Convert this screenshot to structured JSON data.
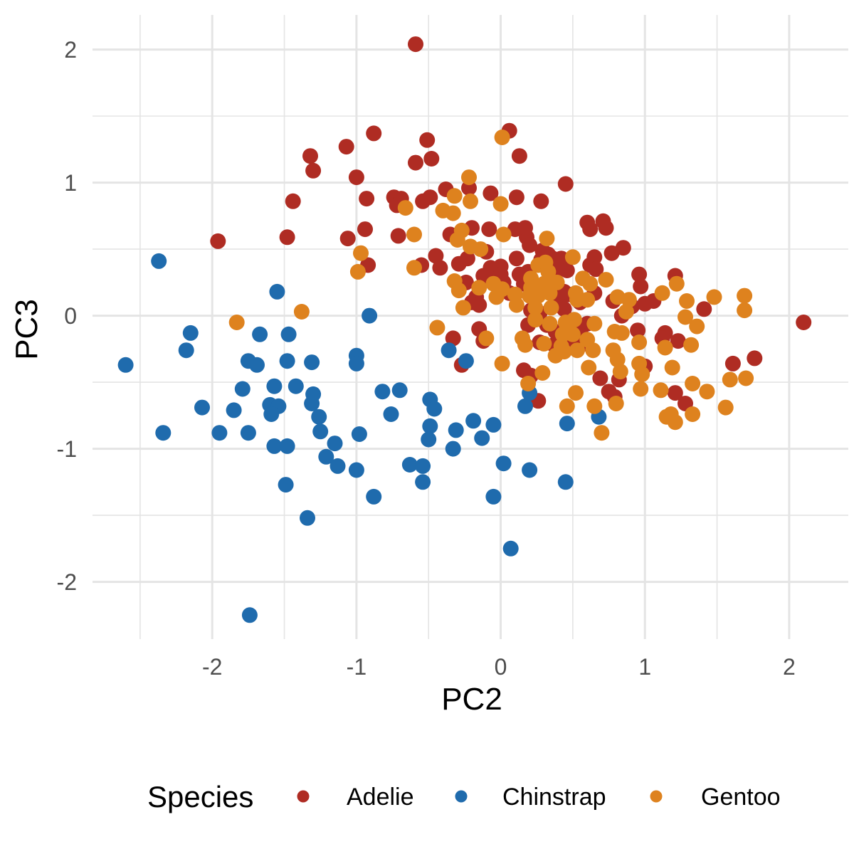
{
  "figure": {
    "background": "#FFFFFF"
  },
  "chart_data": {
    "type": "scatter",
    "title": "",
    "xlabel": "PC2",
    "ylabel": "PC3",
    "x_ticks": [
      -2,
      -1,
      0,
      1,
      2
    ],
    "y_ticks": [
      2,
      1,
      0,
      -1,
      -2
    ],
    "xlim": [
      -2.83,
      2.41
    ],
    "ylim": [
      -2.43,
      2.26
    ],
    "grid": {
      "show": true,
      "minor_step": 0.5,
      "color": "#E4E4E4"
    },
    "tick_label_color": "#4D4D4D",
    "point_radius_px": 11,
    "legend": {
      "title": "Species",
      "position": "bottom"
    },
    "series": [
      {
        "name": "Adelie",
        "color": "#AF2C23",
        "points": [
          [
            -1.32,
            1.2
          ],
          [
            -1.3,
            1.09
          ],
          [
            -1.44,
            0.86
          ],
          [
            -0.59,
            2.04
          ],
          [
            -0.88,
            1.37
          ],
          [
            -1.07,
            1.27
          ],
          [
            -0.51,
            1.32
          ],
          [
            -0.59,
            1.15
          ],
          [
            -0.48,
            1.18
          ],
          [
            0.06,
            1.39
          ],
          [
            0.13,
            1.2
          ],
          [
            -1.0,
            1.04
          ],
          [
            0.45,
            0.99
          ],
          [
            -0.22,
            0.96
          ],
          [
            -0.93,
            0.88
          ],
          [
            -0.74,
            0.89
          ],
          [
            -0.69,
            0.88
          ],
          [
            -0.72,
            0.83
          ],
          [
            -0.54,
            0.86
          ],
          [
            -0.49,
            0.89
          ],
          [
            -0.38,
            0.95
          ],
          [
            -0.07,
            0.92
          ],
          [
            0.11,
            0.89
          ],
          [
            0.28,
            0.86
          ],
          [
            0.6,
            0.7
          ],
          [
            0.71,
            0.71
          ],
          [
            -1.96,
            0.56
          ],
          [
            -1.48,
            0.59
          ],
          [
            -1.06,
            0.58
          ],
          [
            -0.94,
            0.65
          ],
          [
            -0.71,
            0.6
          ],
          [
            -0.35,
            0.61
          ],
          [
            -0.2,
            0.66
          ],
          [
            -0.08,
            0.65
          ],
          [
            0.1,
            0.65
          ],
          [
            0.18,
            0.59
          ],
          [
            0.2,
            0.53
          ],
          [
            -0.92,
            0.38
          ],
          [
            -0.45,
            0.45
          ],
          [
            -0.55,
            0.38
          ],
          [
            -0.42,
            0.36
          ],
          [
            -0.29,
            0.39
          ],
          [
            -0.23,
            0.43
          ],
          [
            -0.1,
            0.48
          ],
          [
            -0.12,
            0.3
          ],
          [
            -0.07,
            0.36
          ],
          [
            0.0,
            0.37
          ],
          [
            -0.24,
            0.25
          ],
          [
            -0.17,
            0.14
          ],
          [
            0.02,
            0.25
          ],
          [
            0.11,
            0.43
          ],
          [
            0.13,
            0.31
          ],
          [
            0.17,
            0.29
          ],
          [
            0.19,
            0.33
          ],
          [
            0.29,
            0.49
          ],
          [
            0.33,
            0.46
          ],
          [
            0.36,
            0.43
          ],
          [
            0.37,
            0.37
          ],
          [
            0.42,
            0.43
          ],
          [
            0.46,
            0.34
          ],
          [
            0.35,
            0.23
          ],
          [
            0.41,
            0.14
          ],
          [
            0.47,
            0.16
          ],
          [
            0.21,
            0.04
          ],
          [
            0.32,
            -0.07
          ],
          [
            0.38,
            -0.12
          ],
          [
            0.5,
            -0.1
          ],
          [
            0.54,
            -0.1
          ],
          [
            0.55,
            0.1
          ],
          [
            -0.33,
            -0.17
          ],
          [
            -0.27,
            -0.37
          ],
          [
            -0.15,
            -0.1
          ],
          [
            -0.12,
            -0.19
          ],
          [
            0.16,
            -0.41
          ],
          [
            0.21,
            -0.45
          ],
          [
            0.26,
            -0.64
          ],
          [
            0.62,
            0.65
          ],
          [
            0.73,
            0.66
          ],
          [
            0.85,
            0.51
          ],
          [
            0.77,
            0.47
          ],
          [
            0.65,
            0.44
          ],
          [
            0.62,
            0.38
          ],
          [
            0.66,
            0.35
          ],
          [
            0.96,
            0.31
          ],
          [
            0.97,
            0.22
          ],
          [
            0.78,
            0.11
          ],
          [
            0.91,
            0.07
          ],
          [
            0.84,
            0.0
          ],
          [
            1.0,
            0.09
          ],
          [
            1.06,
            0.11
          ],
          [
            1.21,
            0.3
          ],
          [
            1.41,
            0.05
          ],
          [
            2.1,
            -0.05
          ],
          [
            0.6,
            -0.06
          ],
          [
            0.95,
            -0.11
          ],
          [
            1.14,
            -0.13
          ],
          [
            1.12,
            -0.17
          ],
          [
            1.23,
            -0.19
          ],
          [
            0.69,
            -0.47
          ],
          [
            0.82,
            -0.48
          ],
          [
            1.0,
            -0.38
          ],
          [
            1.61,
            -0.36
          ],
          [
            1.76,
            -0.32
          ],
          [
            1.21,
            -0.58
          ],
          [
            1.28,
            -0.66
          ],
          [
            0.75,
            -0.57
          ],
          [
            0.79,
            -0.61
          ],
          [
            0.17,
            0.66
          ],
          [
            0.28,
            0.42
          ],
          [
            -0.07,
            0.28
          ],
          [
            0.0,
            0.31
          ],
          [
            0.16,
            0.24
          ],
          [
            0.39,
            0.34
          ],
          [
            0.44,
            0.18
          ],
          [
            0.65,
            0.17
          ],
          [
            -0.2,
            0.1
          ],
          [
            -0.15,
            0.08
          ],
          [
            0.06,
            0.17
          ],
          [
            0.27,
            0.02
          ],
          [
            0.44,
            0.05
          ],
          [
            0.19,
            -0.07
          ],
          [
            0.56,
            -0.15
          ],
          [
            0.58,
            -0.21
          ],
          [
            0.5,
            -0.22
          ],
          [
            0.27,
            -0.2
          ],
          [
            0.37,
            -0.22
          ]
        ]
      },
      {
        "name": "Chinstrap",
        "color": "#1F6BAD",
        "points": [
          [
            -2.37,
            0.41
          ],
          [
            -1.55,
            0.18
          ],
          [
            -2.15,
            -0.13
          ],
          [
            -1.67,
            -0.14
          ],
          [
            -1.47,
            -0.14
          ],
          [
            -2.18,
            -0.26
          ],
          [
            -1.75,
            -0.34
          ],
          [
            -1.69,
            -0.37
          ],
          [
            -1.48,
            -0.34
          ],
          [
            -1.31,
            -0.35
          ],
          [
            -2.6,
            -0.37
          ],
          [
            -1.79,
            -0.55
          ],
          [
            -1.57,
            -0.53
          ],
          [
            -1.42,
            -0.53
          ],
          [
            -1.3,
            -0.59
          ],
          [
            -1.31,
            -0.66
          ],
          [
            -2.07,
            -0.69
          ],
          [
            -1.85,
            -0.71
          ],
          [
            -1.6,
            -0.67
          ],
          [
            -1.54,
            -0.68
          ],
          [
            -1.59,
            -0.74
          ],
          [
            -1.26,
            -0.76
          ],
          [
            -1.25,
            -0.87
          ],
          [
            -2.34,
            -0.88
          ],
          [
            -1.95,
            -0.88
          ],
          [
            -1.75,
            -0.88
          ],
          [
            -0.91,
            0.0
          ],
          [
            -1.0,
            -0.3
          ],
          [
            -1.0,
            -0.36
          ],
          [
            -0.82,
            -0.57
          ],
          [
            -0.7,
            -0.56
          ],
          [
            -0.49,
            -0.63
          ],
          [
            -0.46,
            -0.7
          ],
          [
            -0.76,
            -0.74
          ],
          [
            -0.19,
            -0.79
          ],
          [
            -0.49,
            -0.83
          ],
          [
            -0.31,
            -0.86
          ],
          [
            -0.05,
            -0.82
          ],
          [
            -0.36,
            -0.26
          ],
          [
            -0.24,
            -0.34
          ],
          [
            0.2,
            -0.58
          ],
          [
            0.17,
            -0.68
          ],
          [
            0.46,
            -0.81
          ],
          [
            0.68,
            -0.76
          ],
          [
            -0.98,
            -0.89
          ],
          [
            -1.57,
            -0.98
          ],
          [
            -1.48,
            -0.98
          ],
          [
            -1.21,
            -1.06
          ],
          [
            -1.49,
            -1.27
          ],
          [
            -1.34,
            -1.52
          ],
          [
            -1.74,
            -2.25
          ],
          [
            -1.15,
            -0.96
          ],
          [
            -1.13,
            -1.13
          ],
          [
            -1.0,
            -1.16
          ],
          [
            -0.88,
            -1.36
          ],
          [
            -0.63,
            -1.12
          ],
          [
            -0.54,
            -1.13
          ],
          [
            -0.54,
            -1.25
          ],
          [
            -0.5,
            -0.93
          ],
          [
            -0.33,
            -1.0
          ],
          [
            -0.13,
            -0.92
          ],
          [
            0.02,
            -1.11
          ],
          [
            0.2,
            -1.16
          ],
          [
            0.45,
            -1.25
          ],
          [
            -0.05,
            -1.36
          ],
          [
            0.07,
            -1.75
          ]
        ]
      },
      {
        "name": "Gentoo",
        "color": "#DE821E",
        "points": [
          [
            0.01,
            1.34
          ],
          [
            -0.22,
            1.04
          ],
          [
            -0.66,
            0.81
          ],
          [
            -0.4,
            0.79
          ],
          [
            -0.33,
            0.77
          ],
          [
            -0.32,
            0.9
          ],
          [
            0.0,
            0.84
          ],
          [
            -1.38,
            0.03
          ],
          [
            -1.83,
            -0.05
          ],
          [
            -0.6,
            0.61
          ],
          [
            -0.3,
            0.57
          ],
          [
            -0.27,
            0.64
          ],
          [
            0.02,
            0.61
          ],
          [
            0.32,
            0.58
          ],
          [
            -0.97,
            0.47
          ],
          [
            -0.99,
            0.33
          ],
          [
            -0.6,
            0.36
          ],
          [
            -0.14,
            0.5
          ],
          [
            -0.32,
            0.26
          ],
          [
            -0.29,
            0.19
          ],
          [
            -0.15,
            0.21
          ],
          [
            -0.05,
            0.24
          ],
          [
            -0.03,
            0.14
          ],
          [
            0.01,
            0.2
          ],
          [
            0.1,
            0.16
          ],
          [
            0.21,
            0.28
          ],
          [
            0.26,
            0.38
          ],
          [
            0.31,
            0.4
          ],
          [
            0.33,
            0.33
          ],
          [
            0.25,
            0.22
          ],
          [
            0.3,
            0.24
          ],
          [
            0.39,
            0.25
          ],
          [
            0.34,
            0.17
          ],
          [
            0.5,
            0.44
          ],
          [
            0.52,
            0.17
          ],
          [
            0.53,
            0.12
          ],
          [
            0.24,
            -0.03
          ],
          [
            0.3,
            -0.21
          ],
          [
            0.42,
            -0.23
          ],
          [
            0.5,
            -0.14
          ],
          [
            -0.44,
            -0.09
          ],
          [
            -0.1,
            -0.17
          ],
          [
            0.01,
            -0.36
          ],
          [
            0.29,
            -0.43
          ],
          [
            0.19,
            -0.51
          ],
          [
            0.46,
            -0.68
          ],
          [
            0.52,
            -0.58
          ],
          [
            0.73,
            0.27
          ],
          [
            0.62,
            0.24
          ],
          [
            0.81,
            0.14
          ],
          [
            0.89,
            0.12
          ],
          [
            0.87,
            0.03
          ],
          [
            1.12,
            0.17
          ],
          [
            1.22,
            0.24
          ],
          [
            1.29,
            0.11
          ],
          [
            1.48,
            0.14
          ],
          [
            1.69,
            0.15
          ],
          [
            1.69,
            0.04
          ],
          [
            0.65,
            -0.06
          ],
          [
            0.79,
            -0.12
          ],
          [
            0.84,
            -0.13
          ],
          [
            0.96,
            -0.2
          ],
          [
            1.14,
            -0.24
          ],
          [
            1.32,
            -0.22
          ],
          [
            1.28,
            -0.01
          ],
          [
            1.36,
            -0.08
          ],
          [
            0.78,
            -0.26
          ],
          [
            0.81,
            -0.33
          ],
          [
            0.61,
            -0.39
          ],
          [
            0.83,
            -0.42
          ],
          [
            0.96,
            -0.36
          ],
          [
            0.98,
            -0.44
          ],
          [
            0.97,
            -0.55
          ],
          [
            1.19,
            -0.39
          ],
          [
            1.59,
            -0.48
          ],
          [
            1.7,
            -0.47
          ],
          [
            1.33,
            -0.51
          ],
          [
            1.43,
            -0.57
          ],
          [
            1.11,
            -0.56
          ],
          [
            1.18,
            -0.74
          ],
          [
            1.21,
            -0.8
          ],
          [
            1.15,
            -0.76
          ],
          [
            1.33,
            -0.74
          ],
          [
            1.56,
            -0.69
          ],
          [
            0.8,
            -0.66
          ],
          [
            0.65,
            -0.68
          ],
          [
            0.7,
            -0.88
          ],
          [
            -0.21,
            0.86
          ],
          [
            -0.21,
            0.52
          ],
          [
            0.57,
            0.28
          ],
          [
            0.21,
            0.21
          ],
          [
            0.2,
            0.15
          ],
          [
            0.26,
            0.15
          ],
          [
            -0.26,
            0.06
          ],
          [
            0.11,
            0.08
          ],
          [
            0.24,
            0.06
          ],
          [
            0.35,
            0.06
          ],
          [
            0.6,
            0.12
          ],
          [
            0.34,
            -0.06
          ],
          [
            0.45,
            -0.05
          ],
          [
            0.51,
            -0.03
          ],
          [
            0.43,
            -0.14
          ],
          [
            0.6,
            -0.18
          ],
          [
            0.15,
            -0.17
          ],
          [
            0.17,
            -0.22
          ],
          [
            0.44,
            -0.27
          ],
          [
            0.53,
            -0.26
          ],
          [
            0.64,
            -0.26
          ],
          [
            0.38,
            -0.3
          ]
        ]
      }
    ]
  }
}
